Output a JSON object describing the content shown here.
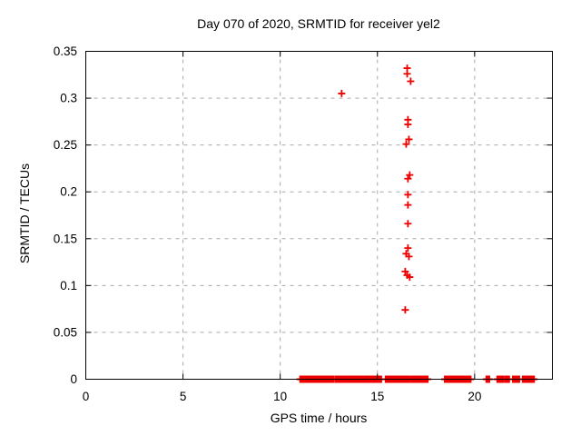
{
  "window": {
    "background": "#ffffff"
  },
  "chart_data": {
    "type": "scatter",
    "title": "Day 070 of 2020, SRMTID for receiver yel2",
    "xlabel": "GPS time / hours",
    "ylabel": "SRMTID / TECUs",
    "xlim": [
      0,
      24
    ],
    "ylim": [
      0,
      0.35
    ],
    "xticks": {
      "values": [
        0,
        5,
        10,
        15,
        20
      ],
      "labels": [
        "0",
        "5",
        "10",
        "15",
        "20"
      ]
    },
    "yticks": {
      "values": [
        0,
        0.05,
        0.1,
        0.15,
        0.2,
        0.25,
        0.3,
        0.35
      ],
      "labels": [
        "0",
        "0.05",
        "0.1",
        "0.15",
        "0.2",
        "0.25",
        "0.3",
        "0.35"
      ]
    },
    "grid": {
      "on": true,
      "style": "dashed",
      "color": "#a8a8a8"
    },
    "legend_position": "none",
    "axis_color": "#000000",
    "marker": {
      "shape": "plus",
      "color": "#ee0000",
      "size": 8
    },
    "series": [
      {
        "name": "SRMTID",
        "color": "#ee0000",
        "points": [
          [
            13.16,
            0.305
          ],
          [
            16.53,
            0.332
          ],
          [
            16.53,
            0.326
          ],
          [
            16.71,
            0.318
          ],
          [
            16.57,
            0.277
          ],
          [
            16.57,
            0.272
          ],
          [
            16.62,
            0.256
          ],
          [
            16.48,
            0.251
          ],
          [
            16.66,
            0.218
          ],
          [
            16.57,
            0.214
          ],
          [
            16.57,
            0.197
          ],
          [
            16.57,
            0.186
          ],
          [
            16.57,
            0.166
          ],
          [
            16.57,
            0.14
          ],
          [
            16.48,
            0.134
          ],
          [
            16.62,
            0.131
          ],
          [
            16.43,
            0.115
          ],
          [
            16.53,
            0.111
          ],
          [
            16.66,
            0.109
          ],
          [
            16.43,
            0.074
          ]
        ],
        "zero_value_runs": [
          [
            11.05,
            12.7
          ],
          [
            12.85,
            13.12
          ],
          [
            13.26,
            15.17
          ],
          [
            15.45,
            15.72
          ],
          [
            15.78,
            16.05
          ],
          [
            16.1,
            16.62
          ],
          [
            16.76,
            17.18
          ],
          [
            17.27,
            17.37
          ],
          [
            17.47,
            17.56
          ],
          [
            18.49,
            19.23
          ],
          [
            19.33,
            19.51
          ],
          [
            19.61,
            19.67
          ],
          [
            19.72,
            19.77
          ],
          [
            20.63,
            20.73
          ],
          [
            21.19,
            21.47
          ],
          [
            21.61,
            21.75
          ],
          [
            21.99,
            22.27
          ],
          [
            22.5,
            22.78
          ],
          [
            22.83,
            22.92
          ],
          [
            22.97,
            23.03
          ]
        ]
      }
    ]
  }
}
